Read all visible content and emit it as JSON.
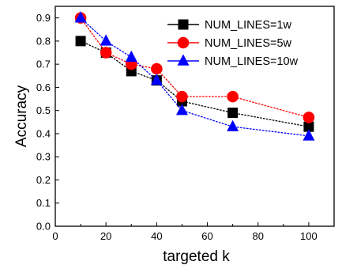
{
  "chart_data": {
    "type": "line",
    "title": "",
    "xlabel": "targeted k",
    "ylabel": "Accuracy",
    "xlim": [
      0,
      110
    ],
    "ylim": [
      0.0,
      0.95
    ],
    "xticks": [
      0,
      20,
      40,
      60,
      80,
      100
    ],
    "yticks": [
      0.0,
      0.1,
      0.2,
      0.3,
      0.4,
      0.5,
      0.6,
      0.7,
      0.8,
      0.9
    ],
    "xtick_labels": [
      "0",
      "20",
      "40",
      "60",
      "80",
      "100"
    ],
    "ytick_labels": [
      "0.0",
      "0.1",
      "0.2",
      "0.3",
      "0.4",
      "0.5",
      "0.6",
      "0.7",
      "0.8",
      "0.9"
    ],
    "grid": false,
    "legend_position": "top-right",
    "x": [
      10,
      20,
      30,
      40,
      50,
      70,
      100
    ],
    "series": [
      {
        "name": "NUM_LINES=1w",
        "values": [
          0.8,
          0.75,
          0.67,
          0.63,
          0.54,
          0.49,
          0.43
        ],
        "color": "#000000",
        "marker": "square",
        "line_style": "dotted"
      },
      {
        "name": "NUM_LINES=5w",
        "values": [
          0.9,
          0.75,
          0.7,
          0.68,
          0.56,
          0.56,
          0.47
        ],
        "color": "#ff0000",
        "marker": "circle",
        "line_style": "dotted"
      },
      {
        "name": "NUM_LINES=10w",
        "values": [
          0.9,
          0.8,
          0.73,
          0.63,
          0.5,
          0.43,
          0.39
        ],
        "color": "#0000ff",
        "marker": "triangle",
        "line_style": "dotted"
      }
    ]
  }
}
